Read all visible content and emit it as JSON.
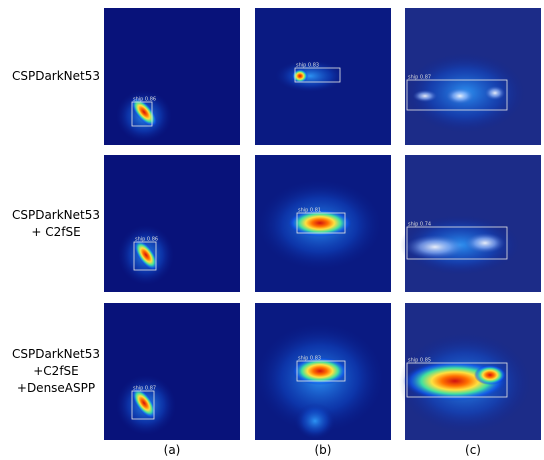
{
  "rows": [
    {
      "label": [
        "CSPDarkNet53"
      ]
    },
    {
      "label": [
        "CSPDarkNet53",
        "+ C2fSE"
      ]
    },
    {
      "label": [
        "CSPDarkNet53",
        "+C2fSE",
        "+DenseASPP"
      ]
    }
  ],
  "columns": [
    "(a)",
    "(b)",
    "(c)"
  ],
  "detections": [
    [
      "ship 0.86",
      "ship 0.83",
      "ship 0.87"
    ],
    [
      "ship 0.86",
      "ship 0.81",
      "ship 0.74"
    ],
    [
      "ship 0.87",
      "ship 0.83",
      "ship 0.85"
    ]
  ]
}
